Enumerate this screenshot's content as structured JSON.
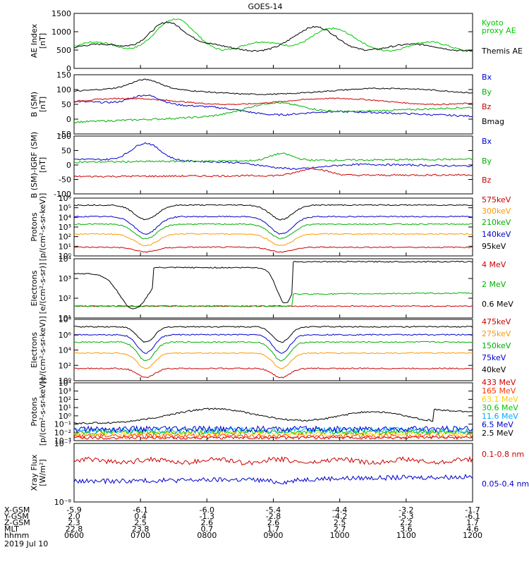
{
  "title": "GOES-14",
  "date": "2019 Jul 10",
  "chart_data": [
    {
      "type": "line",
      "ylabel": "AE Index\n[nT]",
      "yticks": [
        "1500",
        "1000",
        "500",
        "0"
      ],
      "ylim": [
        0,
        1500
      ],
      "legend": [
        {
          "label": "Kyoto\nproxy AE",
          "color": "#00c800"
        },
        {
          "label": "Themis AE",
          "color": "#000000"
        }
      ]
    },
    {
      "type": "line",
      "ylabel": "B (SM)\n[nT]",
      "yticks": [
        "150",
        "100",
        "50",
        "0",
        "-50"
      ],
      "ylim": [
        -50,
        150
      ],
      "legend": [
        {
          "label": "Bx",
          "color": "#0000cc"
        },
        {
          "label": "By",
          "color": "#00b000"
        },
        {
          "label": "Bz",
          "color": "#cc0000"
        },
        {
          "label": "Bmag",
          "color": "#000000"
        }
      ]
    },
    {
      "type": "line",
      "ylabel": "B (SM)-IGRF (SM)\n[nT]",
      "yticks": [
        "100",
        "50",
        "0",
        "-50",
        "-100"
      ],
      "ylim": [
        -100,
        100
      ],
      "legend": [
        {
          "label": "Bx",
          "color": "#0000cc"
        },
        {
          "label": "By",
          "color": "#00b000"
        },
        {
          "label": "Bz",
          "color": "#cc0000"
        }
      ]
    },
    {
      "type": "line",
      "log": true,
      "ylabel": "Protons\n[p/(cm²-s-sr-keV)]",
      "yticks": [
        "10⁶",
        "10⁵",
        "10⁴",
        "10³",
        "10²",
        "10¹",
        "10⁰"
      ],
      "legend": [
        {
          "label": "575keV",
          "color": "#cc0000"
        },
        {
          "label": "300keV",
          "color": "#ff9900"
        },
        {
          "label": "210keV",
          "color": "#00b000"
        },
        {
          "label": "140keV",
          "color": "#0000cc"
        },
        {
          "label": "95keV",
          "color": "#000000"
        }
      ]
    },
    {
      "type": "line",
      "log": true,
      "ylabel": "Electrons\n[e/(cm²-s-sr)]",
      "yticks": [
        "10⁴",
        "10³",
        "10²",
        "10¹"
      ],
      "legend": [
        {
          "label": "4 MeV",
          "color": "#cc0000"
        },
        {
          "label": "2 MeV",
          "color": "#00b000"
        },
        {
          "label": "0.6 MeV",
          "color": "#000000"
        }
      ]
    },
    {
      "type": "line",
      "log": true,
      "ylabel": "Electrons\n[e/(cm²-s-sr-keV)]",
      "yticks": [
        "10⁸",
        "10⁶",
        "10⁴",
        "10²",
        "10⁰"
      ],
      "legend": [
        {
          "label": "475keV",
          "color": "#cc0000"
        },
        {
          "label": "275keV",
          "color": "#ff9900"
        },
        {
          "label": "150keV",
          "color": "#00b000"
        },
        {
          "label": "75keV",
          "color": "#0000cc"
        },
        {
          "label": "40keV",
          "color": "#000000"
        }
      ]
    },
    {
      "type": "line",
      "log": true,
      "ylabel": "Protons\n[p/(cm²-s-sr-keV)]",
      "yticks": [
        "10⁴",
        "10³",
        "10²",
        "10¹",
        "10⁰",
        "10⁻¹",
        "10⁻²",
        "10⁻³"
      ],
      "legend": [
        {
          "label": "433 MeV",
          "color": "#cc0000"
        },
        {
          "label": "165 MeV",
          "color": "#ff3300"
        },
        {
          "label": "63.1 MeV",
          "color": "#ffcc00"
        },
        {
          "label": "30.6 MeV",
          "color": "#00c800"
        },
        {
          "label": "11.6 MeV",
          "color": "#00aaff"
        },
        {
          "label": "6.5 MeV",
          "color": "#0000cc"
        },
        {
          "label": "2.5 MeV",
          "color": "#000000"
        }
      ]
    },
    {
      "type": "line",
      "log": true,
      "ylabel": "Xray Flux\n[W/m²]",
      "yticks": [
        "10⁻⁷",
        "10⁻⁸"
      ],
      "legend": [
        {
          "label": "0.1-0.8 nm",
          "color": "#cc0000"
        },
        {
          "label": "0.05-0.4 nm",
          "color": "#0000cc"
        }
      ]
    }
  ],
  "xaxis": {
    "rows": [
      {
        "label": "X-GSM",
        "values": [
          "-5.9",
          "-6.1",
          "-6.0",
          "-5.4",
          "-4.4",
          "-3.2",
          "-1.7"
        ]
      },
      {
        "label": "Y-GSM",
        "values": [
          "2.0",
          "0.4",
          "-1.3",
          "-2.8",
          "-4.2",
          "-5.3",
          "-6.1"
        ]
      },
      {
        "label": "Z-GSM",
        "values": [
          "2.3",
          "2.5",
          "2.6",
          "2.6",
          "2.5",
          "2.2",
          "1.7"
        ]
      },
      {
        "label": "MLT",
        "values": [
          "22.8",
          "23.8",
          "0.7",
          "1.7",
          "2.7",
          "3.6",
          "4.6"
        ]
      },
      {
        "label": "hhmm",
        "values": [
          "0600",
          "0700",
          "0800",
          "0900",
          "1000",
          "1100",
          "1200"
        ]
      }
    ]
  }
}
